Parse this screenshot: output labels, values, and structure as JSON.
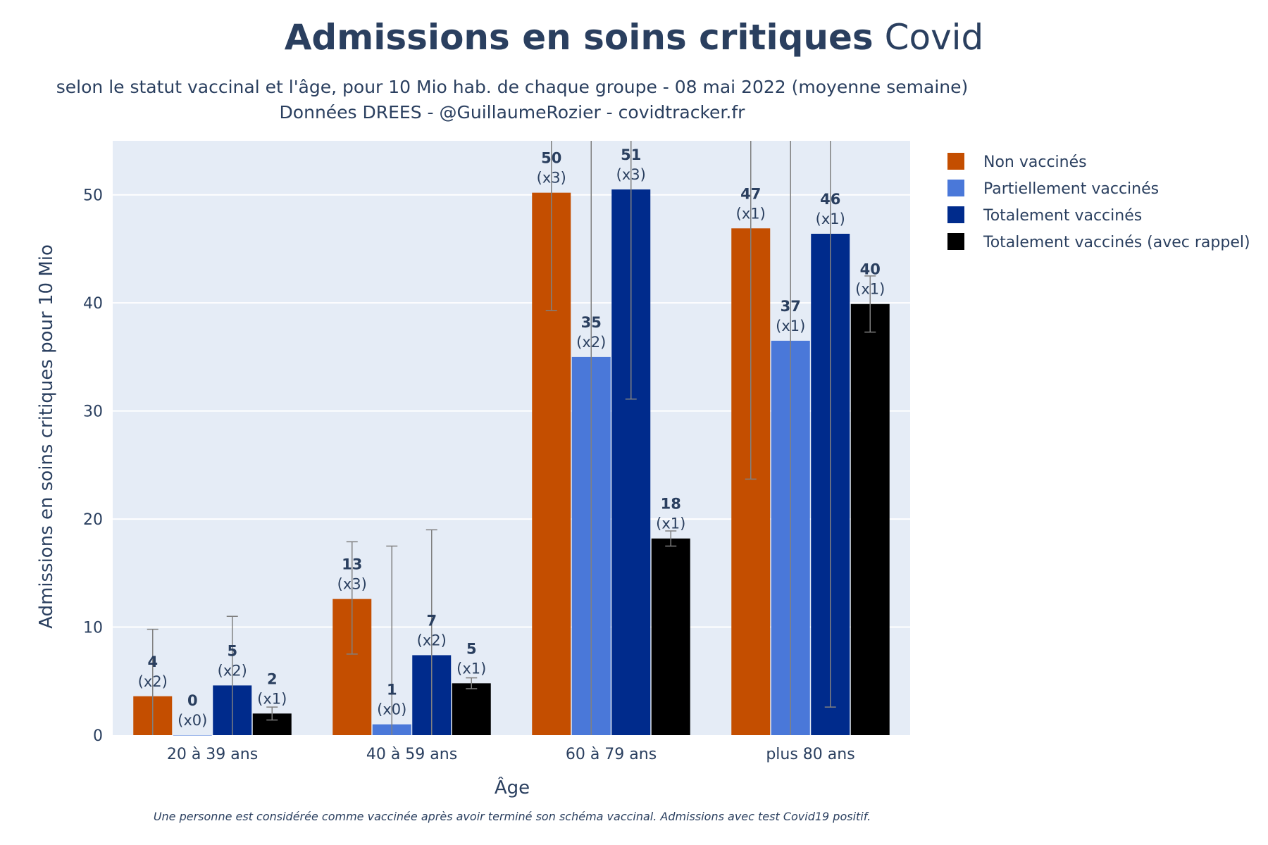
{
  "title": {
    "bold": "Admissions en soins critiques",
    "regular": "Covid"
  },
  "subtitle_line1": "selon le statut vaccinal et l'âge, pour 10 Mio hab. de chaque groupe - 08 mai 2022 (moyenne semaine)",
  "subtitle_line2": "Données DREES - @GuillaumeRozier - covidtracker.fr",
  "footnote": "Une personne est considérée comme vaccinée après avoir terminé son schéma vaccinal. Admissions avec test Covid19 positif.",
  "colors": {
    "plot_bg": "#e5ecf6",
    "grid": "#ffffff",
    "error_bar": "#808080",
    "text": "#2a3f5f"
  },
  "chart_data": {
    "type": "bar",
    "title": "Admissions en soins critiques Covid",
    "xlabel": "Âge",
    "ylabel": "Admissions en soins critiques pour 10 Mio",
    "ylim": [
      0,
      55
    ],
    "yticks": [
      0,
      10,
      20,
      30,
      40,
      50
    ],
    "grid": true,
    "legend_position": "right",
    "categories": [
      "20 à 39 ans",
      "40 à 59 ans",
      "60 à 79 ans",
      "plus 80 ans"
    ],
    "series": [
      {
        "name": "Non vaccinés",
        "color": "#c44e00",
        "values": [
          3.6,
          12.6,
          50.2,
          46.9
        ],
        "labels": [
          "4",
          "13",
          "50",
          "47"
        ],
        "ratios": [
          "(x2)",
          "(x3)",
          "(x3)",
          "(x1)"
        ],
        "error_low": [
          0,
          7.5,
          39.3,
          23.7
        ],
        "error_high": [
          9.8,
          17.9,
          55.5,
          55.5
        ]
      },
      {
        "name": "Partiellement vaccinés",
        "color": "#4a78d9",
        "values": [
          0,
          1.0,
          35.0,
          36.5
        ],
        "labels": [
          "0",
          "1",
          "35",
          "37"
        ],
        "ratios": [
          "(x0)",
          "(x0)",
          "(x2)",
          "(x1)"
        ],
        "error_low": [
          0,
          0,
          0,
          0
        ],
        "error_high": [
          0,
          17.5,
          55.5,
          55.5
        ]
      },
      {
        "name": "Totalement vaccinés",
        "color": "#002b8c",
        "values": [
          4.6,
          7.4,
          50.5,
          46.4
        ],
        "labels": [
          "5",
          "7",
          "51",
          "46"
        ],
        "ratios": [
          "(x2)",
          "(x2)",
          "(x3)",
          "(x1)"
        ],
        "error_low": [
          0,
          0,
          31.1,
          2.6
        ],
        "error_high": [
          11.0,
          19.0,
          55.5,
          55.5
        ]
      },
      {
        "name": "Totalement vaccinés (avec rappel)",
        "color": "#000000",
        "values": [
          2.0,
          4.8,
          18.2,
          39.9
        ],
        "labels": [
          "2",
          "5",
          "18",
          "40"
        ],
        "ratios": [
          "(x1)",
          "(x1)",
          "(x1)",
          "(x1)"
        ],
        "error_low": [
          1.4,
          4.3,
          17.5,
          37.3
        ],
        "error_high": [
          2.6,
          5.3,
          18.9,
          42.5
        ]
      }
    ]
  }
}
